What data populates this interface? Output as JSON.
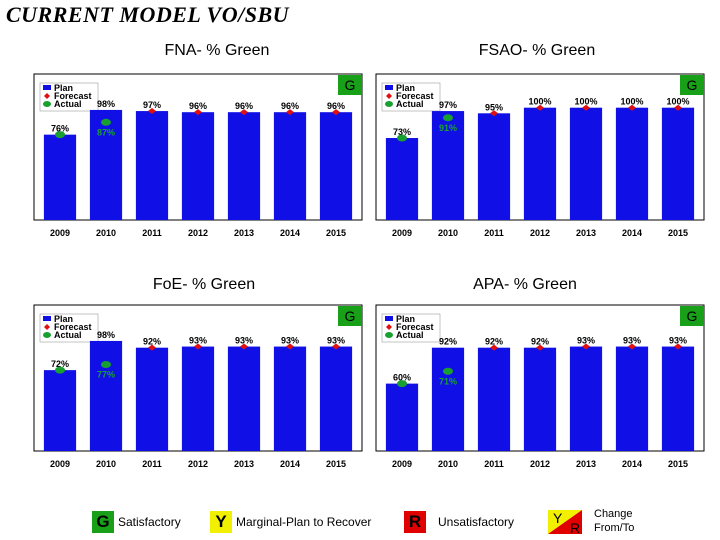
{
  "page_title": "CURRENT MODEL VO/SBU",
  "legend_box_labels": [
    "Plan",
    "Forecast",
    "Actual"
  ],
  "colors": {
    "bar": "#1010e6",
    "forecast": "#e01010",
    "actual": "#18a030",
    "green": "#18a018",
    "yellow": "#f0f000",
    "red": "#e00000"
  },
  "status_legend": {
    "g_letter": "G",
    "g_label": "Satisfactory",
    "y_letter": "Y",
    "y_label": "Marginal-Plan to Recover",
    "r_letter": "R",
    "r_label": "Unsatisfactory",
    "change_y": "Y",
    "change_r": "R",
    "change_label_1": "Change",
    "change_label_2": "From/To"
  },
  "chart_data": [
    {
      "type": "bar",
      "title": "FNA- % Green",
      "status": "G",
      "categories": [
        "2009",
        "2010",
        "2011",
        "2012",
        "2013",
        "2014",
        "2015"
      ],
      "plan": [
        76,
        98,
        97,
        96,
        96,
        96,
        96
      ],
      "plan_labels": [
        "76%",
        "98%",
        "97%",
        "96%",
        "96%",
        "96%",
        "96%"
      ],
      "forecast": [
        null,
        null,
        97,
        96,
        96,
        96,
        96
      ],
      "actual": [
        76,
        87,
        null,
        null,
        null,
        null,
        null
      ],
      "actual_labels": [
        null,
        "87%",
        null,
        null,
        null,
        null,
        null
      ],
      "ylim": [
        0,
        130
      ],
      "legend": "top-left"
    },
    {
      "type": "bar",
      "title": "FSAO- % Green",
      "status": "G",
      "categories": [
        "2009",
        "2010",
        "2011",
        "2012",
        "2013",
        "2014",
        "2015"
      ],
      "plan": [
        73,
        97,
        95,
        100,
        100,
        100,
        100
      ],
      "plan_labels": [
        "73%",
        "97%",
        "95%",
        "100%",
        "100%",
        "100%",
        "100%"
      ],
      "forecast": [
        null,
        null,
        95,
        100,
        100,
        100,
        100
      ],
      "actual": [
        73,
        91,
        null,
        null,
        null,
        null,
        null
      ],
      "actual_labels": [
        null,
        "91%",
        null,
        null,
        null,
        null,
        null
      ],
      "ylim": [
        0,
        130
      ],
      "legend": "top-left"
    },
    {
      "type": "bar",
      "title": "FoE- % Green",
      "status": "G",
      "categories": [
        "2009",
        "2010",
        "2011",
        "2012",
        "2013",
        "2014",
        "2015"
      ],
      "plan": [
        72,
        98,
        92,
        93,
        93,
        93,
        93
      ],
      "plan_labels": [
        "72%",
        "98%",
        "92%",
        "93%",
        "93%",
        "93%",
        "93%"
      ],
      "forecast": [
        null,
        null,
        92,
        93,
        93,
        93,
        93
      ],
      "actual": [
        72,
        77,
        null,
        null,
        null,
        null,
        null
      ],
      "actual_labels": [
        null,
        "77%",
        null,
        null,
        null,
        null,
        null
      ],
      "ylim": [
        0,
        130
      ],
      "legend": "top-left"
    },
    {
      "type": "bar",
      "title": "APA- % Green",
      "status": "G",
      "categories": [
        "2009",
        "2010",
        "2011",
        "2012",
        "2013",
        "2014",
        "2015"
      ],
      "plan": [
        60,
        92,
        92,
        92,
        93,
        93,
        93
      ],
      "plan_labels": [
        "60%",
        "92%",
        "92%",
        "92%",
        "93%",
        "93%",
        "93%"
      ],
      "forecast": [
        null,
        null,
        92,
        92,
        93,
        93,
        93
      ],
      "actual": [
        60,
        71,
        null,
        null,
        null,
        null,
        null
      ],
      "actual_labels": [
        null,
        "71%",
        null,
        null,
        null,
        null,
        null
      ],
      "ylim": [
        0,
        130
      ],
      "legend": "top-left"
    }
  ]
}
